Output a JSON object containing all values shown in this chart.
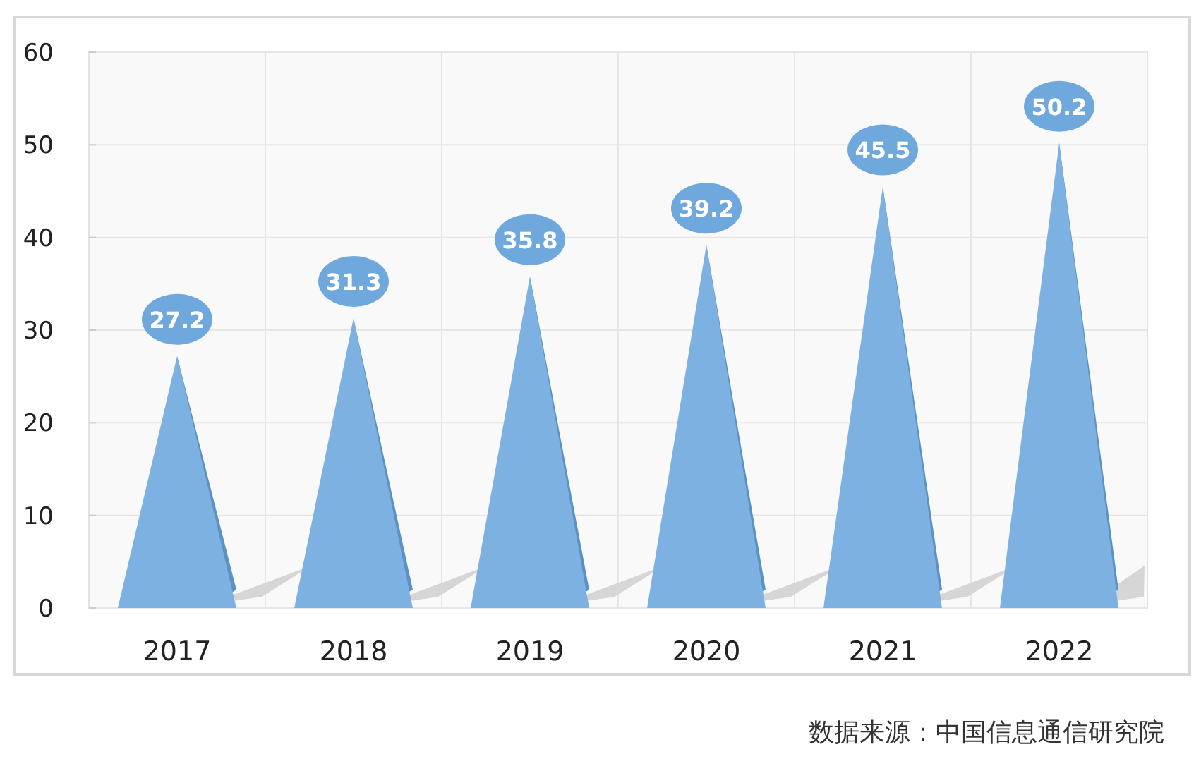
{
  "chart_data": {
    "type": "bar",
    "categories": [
      "2017",
      "2018",
      "2019",
      "2020",
      "2021",
      "2022"
    ],
    "values": [
      27.2,
      31.3,
      35.8,
      39.2,
      45.5,
      50.2
    ],
    "color": "#7cb1e2",
    "ylim": [
      0,
      60
    ],
    "yticks": [
      0,
      10,
      20,
      30,
      40,
      50,
      60
    ],
    "grid": true,
    "data_labels": true,
    "annotations": [
      "数据来源：中国信息通信研究院"
    ]
  }
}
